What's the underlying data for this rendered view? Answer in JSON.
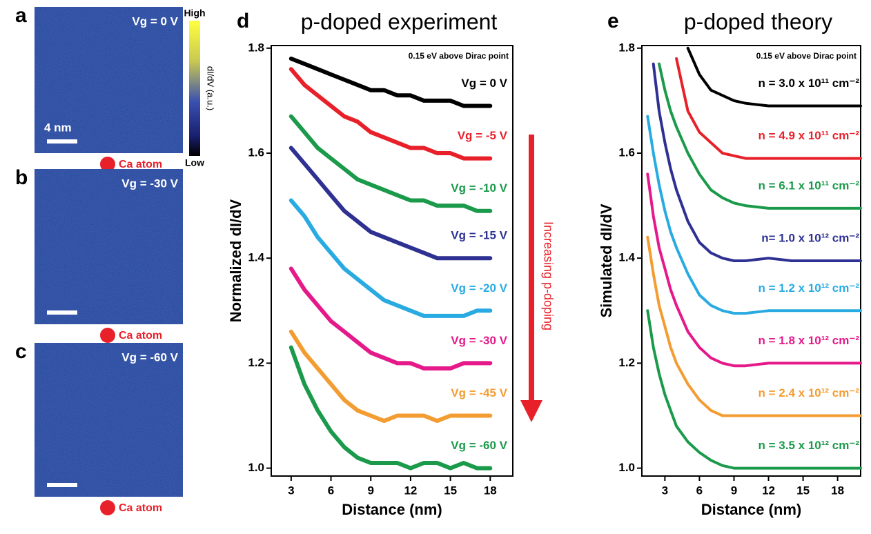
{
  "panels": [
    {
      "label": "a",
      "annotation": "Vg = 0 V",
      "atom": "Ca atom",
      "scalebar": "4 nm"
    },
    {
      "label": "b",
      "annotation": "Vg = -30 V",
      "atom": "Ca atom"
    },
    {
      "label": "c",
      "annotation": "Vg = -60 V",
      "atom": "Ca atom"
    }
  ],
  "colorbar": {
    "high": "High",
    "low": "Low",
    "label": "dI/dV (a.u.)"
  },
  "chart_data": [
    {
      "type": "line",
      "panel_label": "d",
      "title": "p-doped experiment",
      "annotation": "0.15 eV above Dirac point",
      "arrow_label": "Increasing p-doping",
      "x_label": "Distance (nm)",
      "y_label": "Normalized dI/dV",
      "xlim": [
        1.5,
        19.7
      ],
      "ylim": [
        0.985,
        1.805
      ],
      "xticks": [
        3,
        6,
        9,
        12,
        15,
        18
      ],
      "yticks": [
        {
          "value": 1,
          "label": "1.0"
        },
        1.2,
        1.4,
        1.6,
        1.8
      ],
      "x": [
        3,
        4,
        5,
        6,
        7,
        8,
        9,
        10,
        11,
        12,
        13,
        14,
        15,
        16,
        17,
        18
      ],
      "series": [
        {
          "name": "Vg = 0 V",
          "color": "#000000",
          "values": [
            1.78,
            1.77,
            1.76,
            1.75,
            1.74,
            1.73,
            1.72,
            1.72,
            1.71,
            1.71,
            1.7,
            1.7,
            1.7,
            1.69,
            1.69,
            1.69
          ]
        },
        {
          "name": "Vg = -5 V",
          "color": "#e8202a",
          "values": [
            1.76,
            1.73,
            1.71,
            1.69,
            1.67,
            1.66,
            1.64,
            1.63,
            1.62,
            1.61,
            1.61,
            1.6,
            1.6,
            1.59,
            1.59,
            1.59
          ]
        },
        {
          "name": "Vg = -10 V",
          "color": "#1a9a4a",
          "values": [
            1.67,
            1.64,
            1.61,
            1.59,
            1.57,
            1.55,
            1.54,
            1.53,
            1.52,
            1.51,
            1.51,
            1.5,
            1.5,
            1.5,
            1.49,
            1.49
          ]
        },
        {
          "name": "Vg = -15 V",
          "color": "#2e3192",
          "values": [
            1.61,
            1.58,
            1.55,
            1.52,
            1.49,
            1.47,
            1.45,
            1.44,
            1.43,
            1.42,
            1.41,
            1.4,
            1.4,
            1.4,
            1.4,
            1.4
          ]
        },
        {
          "name": "Vg = -20 V",
          "color": "#29abe2",
          "values": [
            1.51,
            1.48,
            1.44,
            1.41,
            1.38,
            1.36,
            1.34,
            1.32,
            1.31,
            1.3,
            1.29,
            1.29,
            1.29,
            1.29,
            1.3,
            1.3
          ]
        },
        {
          "name": "Vg = -30 V",
          "color": "#e5198a",
          "values": [
            1.38,
            1.34,
            1.31,
            1.28,
            1.26,
            1.24,
            1.22,
            1.21,
            1.2,
            1.2,
            1.19,
            1.19,
            1.19,
            1.2,
            1.2,
            1.2
          ]
        },
        {
          "name": "Vg = -45 V",
          "color": "#f39c32",
          "values": [
            1.26,
            1.22,
            1.19,
            1.16,
            1.13,
            1.11,
            1.1,
            1.09,
            1.1,
            1.1,
            1.1,
            1.09,
            1.1,
            1.1,
            1.1,
            1.1
          ]
        },
        {
          "name": "Vg = -60 V",
          "color": "#1a9a4a",
          "values": [
            1.23,
            1.16,
            1.11,
            1.07,
            1.04,
            1.02,
            1.01,
            1.01,
            1.01,
            1.0,
            1.01,
            1.01,
            1.0,
            1.01,
            1.0,
            1.0
          ]
        }
      ]
    },
    {
      "type": "line",
      "panel_label": "e",
      "title": "p-doped theory",
      "annotation": "0.15 eV above Dirac point",
      "x_label": "Distance (nm)",
      "y_label": "Simulated dI/dV",
      "xlim": [
        1,
        20
      ],
      "ylim": [
        0.985,
        1.805
      ],
      "xticks": [
        3,
        6,
        9,
        12,
        15,
        18
      ],
      "yticks": [
        {
          "value": 1,
          "label": "1.0"
        },
        1.2,
        1.4,
        1.6,
        1.8
      ],
      "x": [
        1.5,
        2,
        2.5,
        3,
        3.5,
        4,
        5,
        6,
        7,
        8,
        9,
        10,
        12,
        14,
        16,
        18,
        20
      ],
      "series": [
        {
          "name": "n = 3.0 x 10¹¹ cm⁻²",
          "color": "#000000",
          "values": [
            null,
            null,
            null,
            null,
            null,
            null,
            1.8,
            1.75,
            1.72,
            1.71,
            1.7,
            1.695,
            1.69,
            1.69,
            1.69,
            1.69,
            1.69
          ]
        },
        {
          "name": "n = 4.9 x 10¹¹ cm⁻²",
          "color": "#e8202a",
          "values": [
            null,
            null,
            null,
            null,
            null,
            1.78,
            1.68,
            1.64,
            1.62,
            1.6,
            1.595,
            1.59,
            1.59,
            1.59,
            1.59,
            1.59,
            1.59
          ]
        },
        {
          "name": "n = 6.1 x 10¹¹ cm⁻²",
          "color": "#1a9a4a",
          "values": [
            null,
            null,
            1.77,
            1.72,
            1.68,
            1.65,
            1.6,
            1.56,
            1.53,
            1.515,
            1.505,
            1.5,
            1.495,
            1.495,
            1.495,
            1.495,
            1.495
          ]
        },
        {
          "name": "n= 1.0 x 10¹² cm⁻²",
          "color": "#2e3192",
          "values": [
            null,
            1.77,
            1.68,
            1.62,
            1.57,
            1.53,
            1.47,
            1.43,
            1.41,
            1.4,
            1.395,
            1.395,
            1.4,
            1.395,
            1.395,
            1.395,
            1.395
          ]
        },
        {
          "name": "n = 1.2 x 10¹² cm⁻²",
          "color": "#29abe2",
          "values": [
            1.67,
            1.6,
            1.54,
            1.49,
            1.45,
            1.42,
            1.37,
            1.33,
            1.31,
            1.3,
            1.295,
            1.295,
            1.3,
            1.3,
            1.3,
            1.3,
            1.3
          ]
        },
        {
          "name": "n = 1.8 x 10¹² cm⁻²",
          "color": "#e5198a",
          "values": [
            1.56,
            1.48,
            1.42,
            1.38,
            1.34,
            1.31,
            1.26,
            1.23,
            1.21,
            1.2,
            1.195,
            1.195,
            1.2,
            1.2,
            1.2,
            1.2,
            1.2
          ]
        },
        {
          "name": "n = 2.4 x 10¹² cm⁻²",
          "color": "#f39c32",
          "values": [
            1.44,
            1.37,
            1.31,
            1.27,
            1.23,
            1.2,
            1.16,
            1.13,
            1.11,
            1.1,
            1.1,
            1.1,
            1.1,
            1.1,
            1.1,
            1.1,
            1.1
          ]
        },
        {
          "name": "n = 3.5 x 10¹² cm⁻²",
          "color": "#1a9a4a",
          "values": [
            1.3,
            1.23,
            1.18,
            1.14,
            1.11,
            1.08,
            1.05,
            1.03,
            1.015,
            1.005,
            1.0,
            1.0,
            1.0,
            1.0,
            1.0,
            1.0,
            1.0
          ]
        }
      ]
    }
  ]
}
